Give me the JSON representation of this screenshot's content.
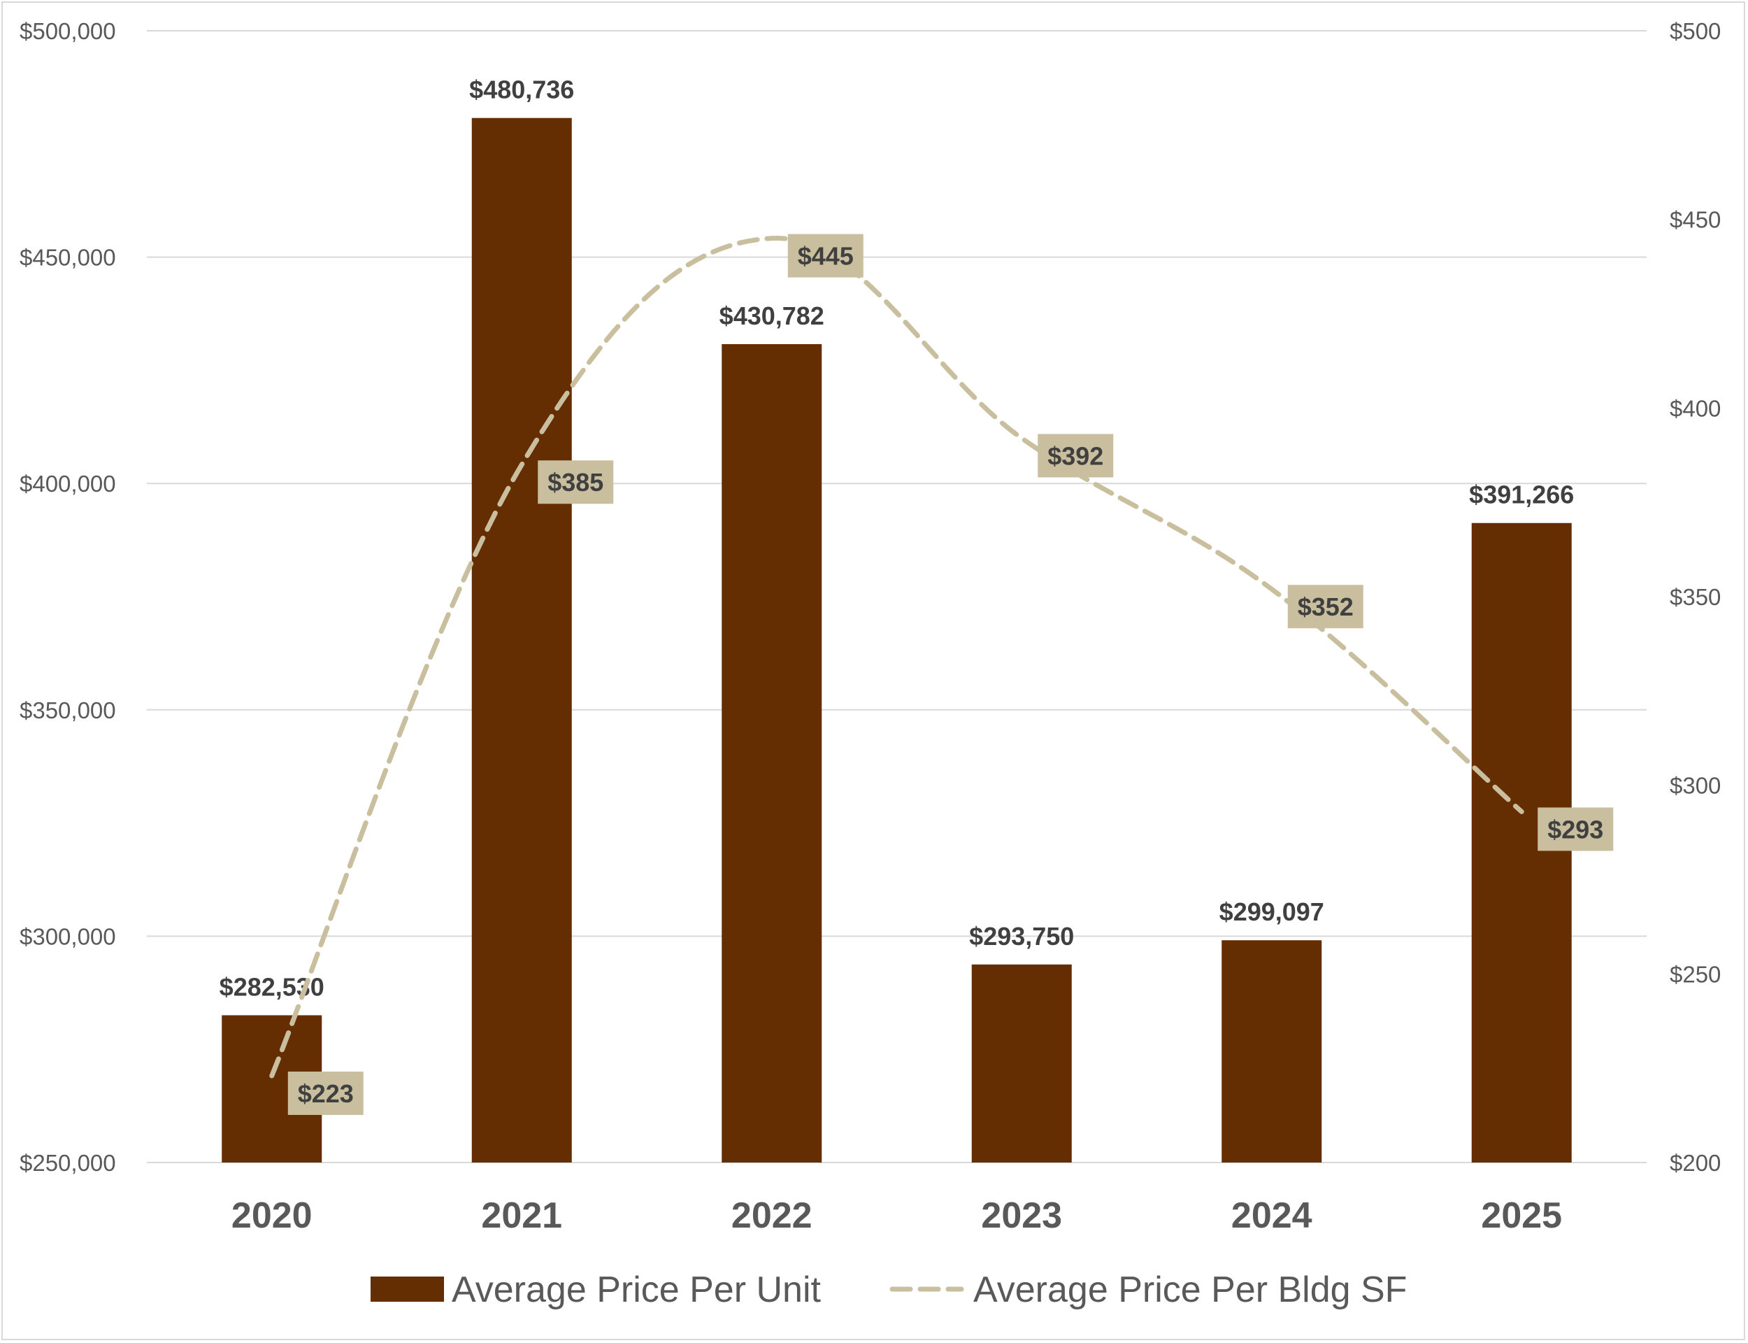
{
  "chart_data": {
    "type": "bar",
    "categories": [
      "2020",
      "2021",
      "2022",
      "2023",
      "2024",
      "2025"
    ],
    "series": [
      {
        "name": "Average Price Per Unit",
        "type": "bar",
        "axis": "left",
        "values": [
          282530,
          480736,
          430782,
          293750,
          299097,
          391266
        ],
        "labels": [
          "$282,530",
          "$480,736",
          "$430,782",
          "$293,750",
          "$299,097",
          "$391,266"
        ],
        "color": "#652D02"
      },
      {
        "name": "Average Price Per Bldg SF",
        "type": "line",
        "style": "dashed",
        "axis": "right",
        "values": [
          223,
          385,
          445,
          392,
          352,
          293
        ],
        "labels": [
          "$223",
          "$385",
          "$445",
          "$392",
          "$352",
          "$293"
        ],
        "color": "#C9BF9E",
        "label_bg": "#C9BF9E"
      }
    ],
    "y_left": {
      "min": 250000,
      "max": 500000,
      "ticks": [
        250000,
        300000,
        350000,
        400000,
        450000,
        500000
      ],
      "tick_labels": [
        "$250,000",
        "$300,000",
        "$350,000",
        "$400,000",
        "$450,000",
        "$500,000"
      ]
    },
    "y_right": {
      "min": 200,
      "max": 500,
      "ticks": [
        200,
        250,
        300,
        350,
        400,
        450,
        500
      ],
      "tick_labels": [
        "$200",
        "$250",
        "$300",
        "$350",
        "$400",
        "$450",
        "$500"
      ]
    },
    "grid": true,
    "gridline_color": "#D9D9D9",
    "legend_position": "bottom"
  }
}
